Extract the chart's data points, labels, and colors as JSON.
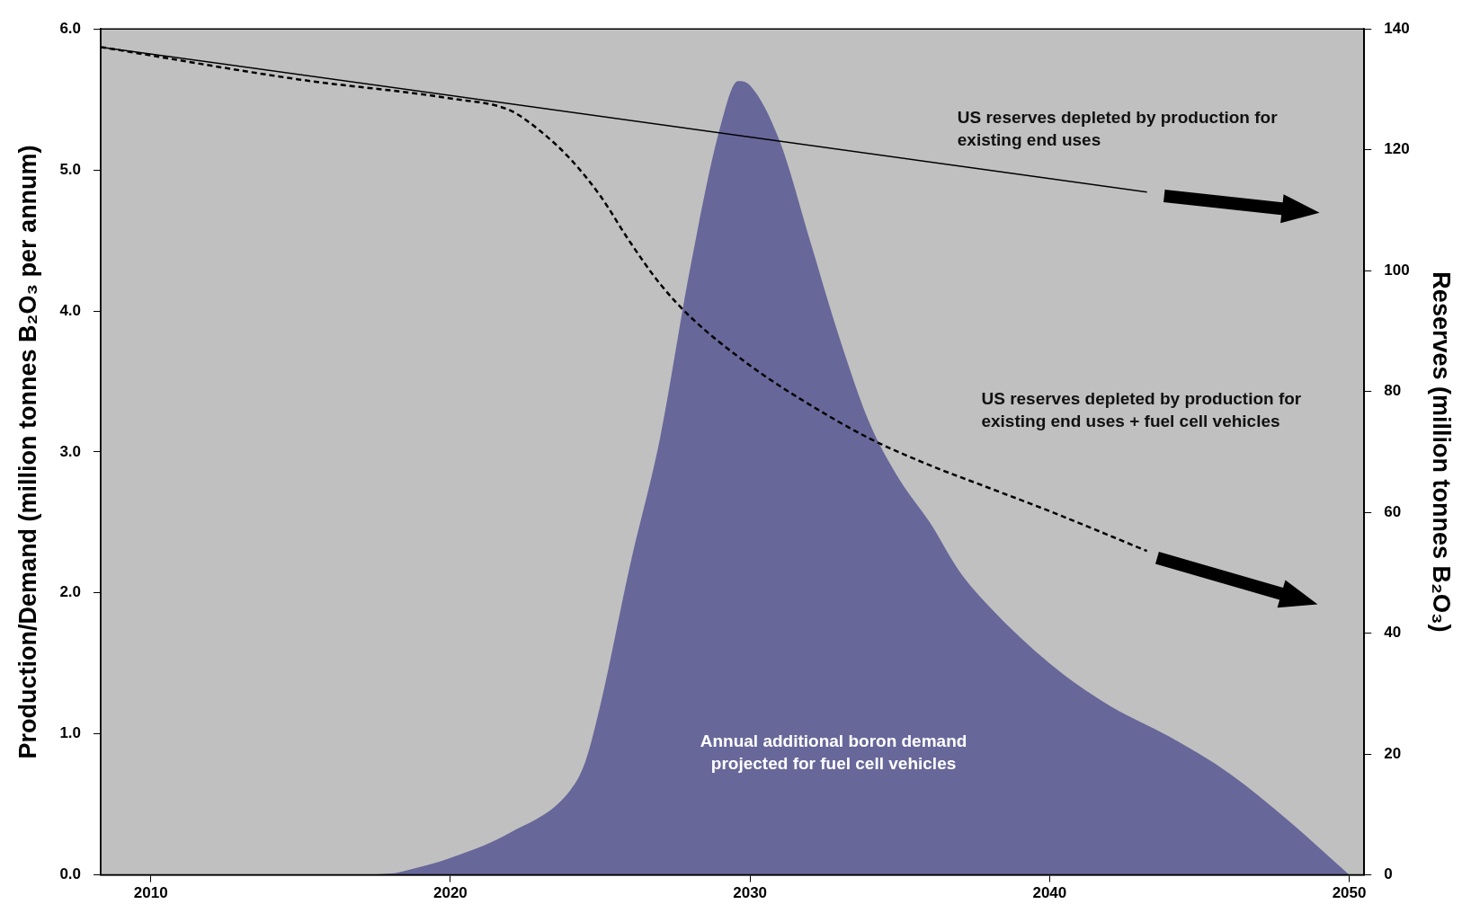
{
  "chart_data": {
    "type": "area",
    "ylabel": "Production/Demand (million tonnes B₂O₃ per annum)",
    "y2label": "Reserves (million tonnes B₂O₃)",
    "xlim": [
      2008.33,
      2050.5
    ],
    "xticks": [
      2010,
      2020,
      2030,
      2040,
      2050
    ],
    "ylim": [
      0,
      6
    ],
    "yticks": [
      {
        "value": 0,
        "label": "0.0"
      },
      {
        "value": 1,
        "label": "1.0"
      },
      {
        "value": 2,
        "label": "2.0"
      },
      {
        "value": 3,
        "label": "3.0"
      },
      {
        "value": 4,
        "label": "4.0"
      },
      {
        "value": 5,
        "label": "5.0"
      },
      {
        "value": 6,
        "label": "6.0"
      }
    ],
    "y2lim": [
      0,
      140
    ],
    "y2ticks": [
      0,
      20,
      40,
      60,
      80,
      100,
      120,
      140
    ],
    "grid": false,
    "legend": false,
    "series": [
      {
        "color": "#67679a",
        "x": [
          2008.33,
          2016,
          2018,
          2018.5,
          2020,
          2022,
          2024,
          2024.5,
          2025,
          2026,
          2027,
          2028,
          2029,
          2029.6,
          2030,
          2031,
          2032,
          2033,
          2034,
          2035,
          2036,
          2037,
          2038,
          2040,
          2042,
          2044,
          2046,
          2048,
          2050
        ],
        "values": [
          0,
          0,
          0.01,
          0.03,
          0.12,
          0.3,
          0.6,
          0.8,
          1.2,
          2.2,
          3.1,
          4.3,
          5.3,
          5.63,
          5.6,
          5.2,
          4.5,
          3.8,
          3.2,
          2.8,
          2.5,
          2.15,
          1.9,
          1.5,
          1.2,
          0.98,
          0.72,
          0.38,
          0
        ]
      },
      {
        "type": "line",
        "axis": "y2",
        "color": "#000000",
        "line_style": "solid",
        "x": [
          2008.33,
          2043.25
        ],
        "values": [
          137,
          113
        ]
      },
      {
        "type": "line",
        "axis": "y2",
        "color": "#000000",
        "line_style": "dashed",
        "x": [
          2008.33,
          2015,
          2020,
          2022,
          2023,
          2024,
          2025,
          2026,
          2027,
          2028,
          2030,
          2032,
          2034,
          2036,
          2038,
          2040,
          2043.25
        ],
        "values": [
          137,
          131.6,
          128.5,
          126.5,
          123.1,
          118.5,
          112.4,
          104.7,
          97.8,
          92.4,
          84.3,
          77.8,
          72.2,
          67.8,
          64,
          60.2,
          53.6
        ]
      }
    ],
    "annotations": [
      "US reserves depleted by production for existing end uses",
      "US reserves depleted by production for existing end uses + fuel cell vehicles",
      "Annual additional boron demand projected for fuel cell vehicles"
    ]
  }
}
